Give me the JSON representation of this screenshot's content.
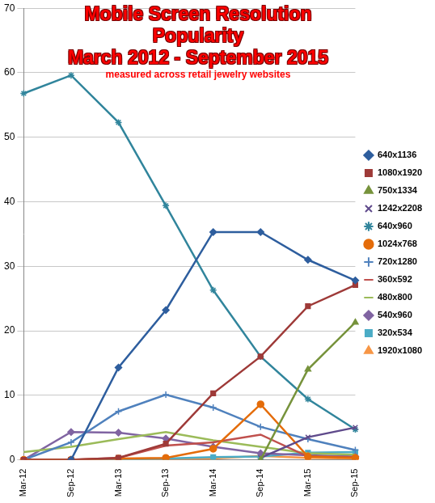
{
  "chart_data": {
    "type": "line",
    "title": [
      "Mobile Screen Resolution Popularity",
      "March 2012 - September 2015"
    ],
    "subtitle": "measured across retail jewelry websites",
    "categories": [
      "Mar-12",
      "Sep-12",
      "Mar-13",
      "Sep-13",
      "Mar-14",
      "Sep-14",
      "Mar-15",
      "Sep-15"
    ],
    "ylim": [
      0,
      70
    ],
    "yticks": [
      0,
      10,
      20,
      30,
      40,
      50,
      60,
      70
    ],
    "grid": true,
    "legend": "right",
    "series": [
      {
        "name": "640x1136",
        "color": "#2e5e9e",
        "marker": "diamond",
        "values": [
          null,
          0,
          14.3,
          23.2,
          35.3,
          35.3,
          31,
          27.8
        ]
      },
      {
        "name": "1080x1920",
        "color": "#9e3a38",
        "marker": "square",
        "values": [
          0,
          0,
          0.3,
          2.5,
          10.3,
          16,
          23.8,
          27.1
        ]
      },
      {
        "name": "750x1334",
        "color": "#77933c",
        "marker": "triangle",
        "values": [
          null,
          null,
          null,
          null,
          null,
          0,
          14,
          21.3
        ]
      },
      {
        "name": "1242x2208",
        "color": "#5f4a8b",
        "marker": "x",
        "values": [
          null,
          null,
          null,
          null,
          null,
          0.3,
          3.5,
          5
        ]
      },
      {
        "name": "640x960",
        "color": "#31859c",
        "marker": "star",
        "values": [
          56.8,
          59.6,
          52.3,
          39.4,
          26.3,
          16,
          9.4,
          4.7
        ]
      },
      {
        "name": "1024x768",
        "color": "#e46c0a",
        "marker": "circle",
        "values": [
          0,
          0,
          0.2,
          0.3,
          1.7,
          8.6,
          0.5,
          0.3
        ]
      },
      {
        "name": "720x1280",
        "color": "#4f81bd",
        "marker": "plus",
        "values": [
          0,
          2.7,
          7.5,
          10.1,
          8.1,
          5.1,
          3.2,
          1.5
        ]
      },
      {
        "name": "360x592",
        "color": "#c0504d",
        "marker": "none",
        "values": [
          0,
          0,
          0.3,
          2.2,
          2.7,
          3.9,
          0.5,
          0.4
        ]
      },
      {
        "name": "480x800",
        "color": "#9bbb59",
        "marker": "none",
        "values": [
          1.2,
          2,
          3.2,
          4.3,
          3,
          2,
          1,
          0.8
        ]
      },
      {
        "name": "540x960",
        "color": "#8064a2",
        "marker": "diamond",
        "values": [
          0,
          4.3,
          4.2,
          3.3,
          2,
          1,
          0.7,
          0.5
        ]
      },
      {
        "name": "320x534",
        "color": "#4bacc6",
        "marker": "square",
        "values": [
          null,
          null,
          0,
          0.2,
          0.4,
          0.5,
          1.1,
          1.2
        ]
      },
      {
        "name": "1920x1080",
        "color": "#f79646",
        "marker": "triangle",
        "values": [
          null,
          null,
          0,
          0.1,
          0.2,
          0.6,
          0.3,
          0.2
        ]
      }
    ]
  }
}
